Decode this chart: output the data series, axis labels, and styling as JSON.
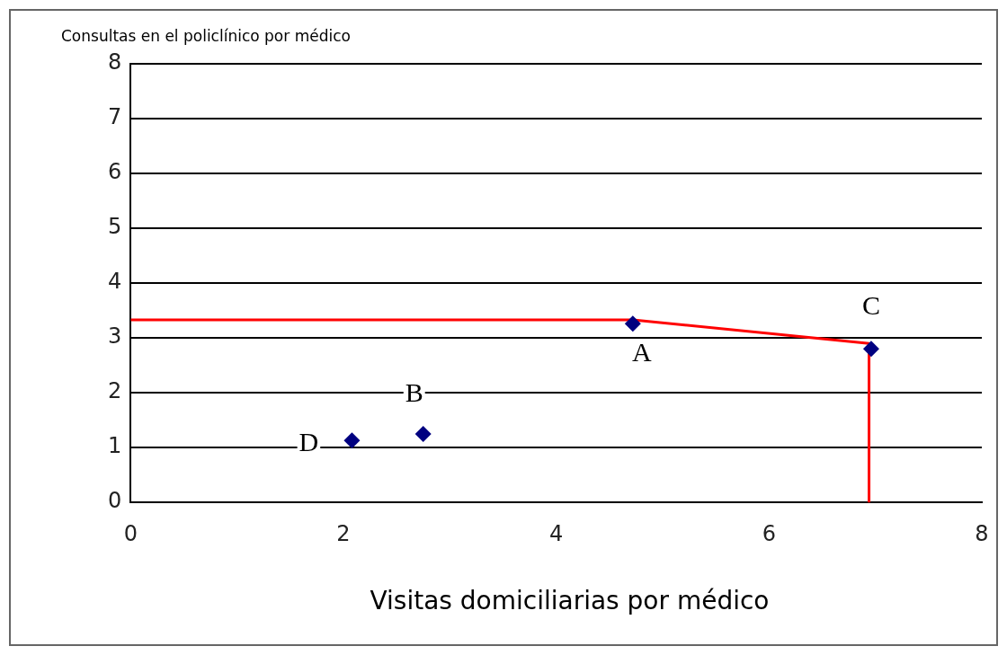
{
  "chart_data": {
    "type": "scatter",
    "xlabel": "Visitas domiciliarias por médico",
    "ylabel": "Consultas en el policlínico por médico",
    "xlim": [
      0,
      8
    ],
    "xticks": [
      0,
      2,
      4,
      6,
      8
    ],
    "ylim": [
      0,
      8
    ],
    "yticks": [
      0,
      1,
      2,
      3,
      4,
      5,
      6,
      7,
      8
    ],
    "grid": "y",
    "legend": false,
    "series": [
      {
        "type": "line",
        "color": "#ff0000",
        "x": [
          0,
          4.72,
          6.94,
          6.94
        ],
        "values": [
          3.33,
          3.33,
          2.9,
          0
        ],
        "marker": "none",
        "line_style": "solid"
      },
      {
        "type": "scatter",
        "color": "#000080",
        "x": [
          4.72,
          2.75,
          6.96,
          2.08
        ],
        "values": [
          3.26,
          1.25,
          2.8,
          1.13
        ],
        "marker": "diamond",
        "value_labels": [
          "A",
          "B",
          "C",
          "D"
        ]
      }
    ]
  }
}
